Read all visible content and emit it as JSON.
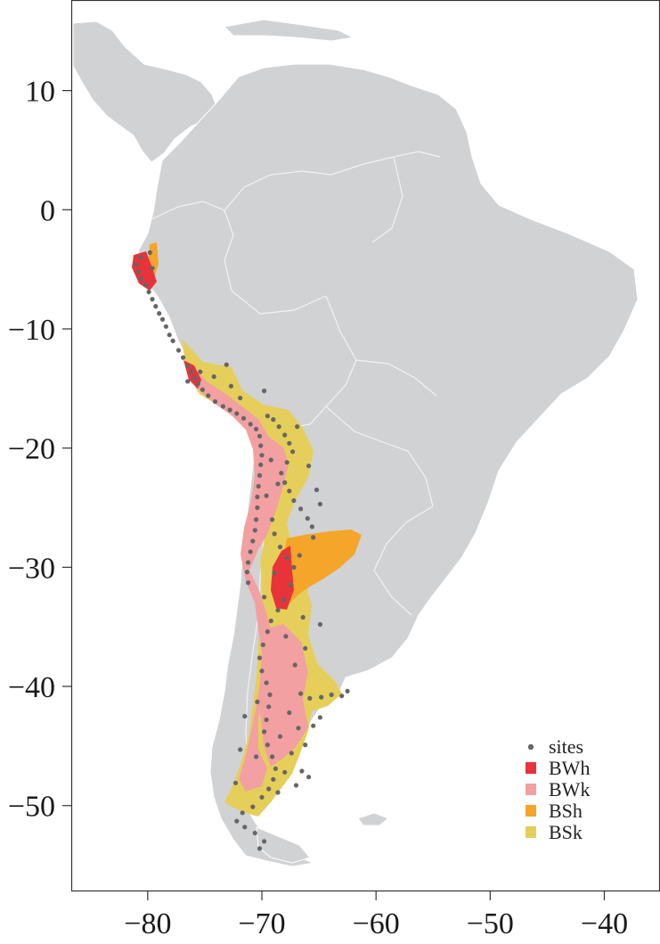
{
  "map": {
    "x_ticks": [
      "−80",
      "−70",
      "−60",
      "−50",
      "−40"
    ],
    "y_ticks": [
      "10",
      "0",
      "−10",
      "−20",
      "−30",
      "−40",
      "−50"
    ],
    "x_tick_values": [
      -80,
      -70,
      -60,
      -50,
      -40
    ],
    "y_tick_values": [
      10,
      0,
      -10,
      -20,
      -30,
      -40,
      -50
    ],
    "x_range": [
      -86.7,
      -35.2
    ],
    "y_range": [
      17.6,
      -57.2
    ],
    "land_color": "#d1d2d4",
    "legend": [
      {
        "label": "sites",
        "color": "#666666",
        "symbol": "dot"
      },
      {
        "label": "BWh",
        "color": "#e8333a",
        "symbol": "square"
      },
      {
        "label": "BWk",
        "color": "#f2a0a2",
        "symbol": "square"
      },
      {
        "label": "BSh",
        "color": "#f5a52a",
        "symbol": "square"
      },
      {
        "label": "BSk",
        "color": "#e5cf5a",
        "symbol": "square"
      }
    ],
    "sites": [
      [
        -81.0,
        -4.6
      ],
      [
        -80.8,
        -5.2
      ],
      [
        -80.6,
        -5.8
      ],
      [
        -80.2,
        -6.3
      ],
      [
        -79.9,
        -6.9
      ],
      [
        -79.6,
        -7.5
      ],
      [
        -79.3,
        -8.1
      ],
      [
        -79.0,
        -8.7
      ],
      [
        -78.7,
        -9.2
      ],
      [
        -78.4,
        -9.8
      ],
      [
        -78.1,
        -10.5
      ],
      [
        -77.8,
        -11.0
      ],
      [
        -77.3,
        -11.8
      ],
      [
        -76.9,
        -12.4
      ],
      [
        -76.5,
        -13.1
      ],
      [
        -76.2,
        -13.6
      ],
      [
        -75.9,
        -14.1
      ],
      [
        -75.6,
        -14.6
      ],
      [
        -75.2,
        -15.1
      ],
      [
        -74.7,
        -15.6
      ],
      [
        -74.1,
        -16.1
      ],
      [
        -73.4,
        -16.5
      ],
      [
        -72.8,
        -16.8
      ],
      [
        -72.2,
        -17.1
      ],
      [
        -71.6,
        -17.5
      ],
      [
        -71.0,
        -18.0
      ],
      [
        -70.5,
        -18.4
      ],
      [
        -70.2,
        -19.0
      ],
      [
        -70.1,
        -19.8
      ],
      [
        -70.0,
        -20.6
      ],
      [
        -70.1,
        -21.4
      ],
      [
        -70.2,
        -22.3
      ],
      [
        -70.3,
        -23.2
      ],
      [
        -70.4,
        -24.1
      ],
      [
        -70.4,
        -25.0
      ],
      [
        -70.5,
        -26.0
      ],
      [
        -70.6,
        -26.9
      ],
      [
        -70.8,
        -27.8
      ],
      [
        -71.0,
        -28.7
      ],
      [
        -71.2,
        -29.6
      ],
      [
        -71.3,
        -30.4
      ],
      [
        -71.2,
        -31.3
      ],
      [
        -69.5,
        -17.3
      ],
      [
        -69.0,
        -17.6
      ],
      [
        -68.5,
        -18.2
      ],
      [
        -68.0,
        -18.9
      ],
      [
        -67.6,
        -19.6
      ],
      [
        -67.3,
        -20.3
      ],
      [
        -67.8,
        -21.2
      ],
      [
        -68.3,
        -22.1
      ],
      [
        -68.0,
        -22.9
      ],
      [
        -67.6,
        -23.6
      ],
      [
        -67.2,
        -24.4
      ],
      [
        -66.6,
        -25.1
      ],
      [
        -66.0,
        -25.9
      ],
      [
        -65.6,
        -26.6
      ],
      [
        -65.5,
        -27.5
      ],
      [
        -69.2,
        -21.0
      ],
      [
        -68.6,
        -23.0
      ],
      [
        -69.6,
        -24.0
      ],
      [
        -69.1,
        -26.0
      ],
      [
        -68.9,
        -27.2
      ],
      [
        -68.4,
        -28.3
      ],
      [
        -67.8,
        -29.2
      ],
      [
        -67.2,
        -30.0
      ],
      [
        -66.7,
        -29.0
      ],
      [
        -67.5,
        -31.5
      ],
      [
        -68.1,
        -32.7
      ],
      [
        -68.6,
        -33.6
      ],
      [
        -69.2,
        -34.5
      ],
      [
        -69.5,
        -35.4
      ],
      [
        -69.9,
        -36.5
      ],
      [
        -70.2,
        -37.6
      ],
      [
        -70.0,
        -38.7
      ],
      [
        -69.6,
        -39.7
      ],
      [
        -69.3,
        -40.7
      ],
      [
        -69.4,
        -41.7
      ],
      [
        -69.6,
        -42.8
      ],
      [
        -69.8,
        -43.8
      ],
      [
        -69.5,
        -44.9
      ],
      [
        -69.1,
        -45.9
      ],
      [
        -68.8,
        -46.9
      ],
      [
        -69.0,
        -47.8
      ],
      [
        -69.4,
        -48.6
      ],
      [
        -70.0,
        -49.3
      ],
      [
        -70.8,
        -50.1
      ],
      [
        -71.7,
        -50.6
      ],
      [
        -72.2,
        -51.3
      ],
      [
        -71.5,
        -51.8
      ],
      [
        -70.6,
        -52.3
      ],
      [
        -69.8,
        -53.0
      ],
      [
        -70.2,
        -53.6
      ],
      [
        -66.6,
        -40.6
      ],
      [
        -65.8,
        -41.0
      ],
      [
        -64.8,
        -40.9
      ],
      [
        -63.9,
        -40.7
      ],
      [
        -63.0,
        -40.8
      ],
      [
        -62.5,
        -40.4
      ],
      [
        -64.9,
        -42.6
      ],
      [
        -65.5,
        -43.3
      ],
      [
        -66.2,
        -44.9
      ],
      [
        -67.4,
        -45.6
      ],
      [
        -66.5,
        -47.1
      ],
      [
        -65.9,
        -47.6
      ],
      [
        -67.0,
        -48.3
      ],
      [
        -68.6,
        -48.9
      ],
      [
        -72.3,
        -48.1
      ],
      [
        -71.9,
        -45.3
      ],
      [
        -73.1,
        -13.0
      ],
      [
        -74.2,
        -14.0
      ],
      [
        -72.7,
        -14.8
      ],
      [
        -71.9,
        -15.8
      ],
      [
        -69.8,
        -15.2
      ],
      [
        -76.5,
        -14.4
      ],
      [
        -75.4,
        -13.6
      ],
      [
        -79.8,
        -3.6
      ],
      [
        -79.6,
        -4.9
      ],
      [
        -80.6,
        -4.0
      ],
      [
        -68.9,
        -30.5
      ],
      [
        -69.8,
        -32.5
      ],
      [
        -67.9,
        -35.8
      ],
      [
        -66.4,
        -34.2
      ],
      [
        -64.9,
        -34.8
      ],
      [
        -66.2,
        -36.8
      ],
      [
        -67.1,
        -38.2
      ],
      [
        -68.4,
        -44.2
      ],
      [
        -70.5,
        -45.9
      ],
      [
        -67.6,
        -42.2
      ],
      [
        -66.8,
        -43.5
      ],
      [
        -68.0,
        -47.2
      ],
      [
        -70.4,
        -41.3
      ],
      [
        -71.5,
        -42.5
      ],
      [
        -65.2,
        -23.5
      ],
      [
        -64.9,
        -24.7
      ],
      [
        -65.9,
        -21.5
      ],
      [
        -66.9,
        -18.2
      ]
    ]
  }
}
